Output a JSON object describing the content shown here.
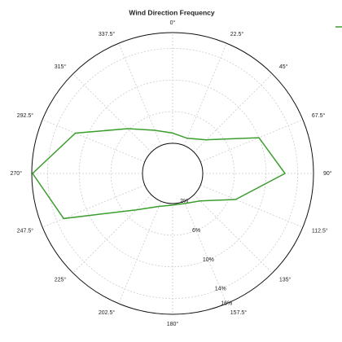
{
  "chart_data": {
    "type": "polar-line",
    "title": "Wind Direction Frequency",
    "x": [
      0,
      22.5,
      45,
      67.5,
      90,
      112.5,
      135,
      157.5,
      180,
      202.5,
      225,
      247.5,
      270,
      292.5,
      315,
      337.5
    ],
    "series": [
      {
        "color": "#3c9e2e",
        "values": [
          3.3,
          3.0,
          4.2,
          10,
          12.4,
          6.8,
          3.1,
          2.3,
          2.2,
          2.7,
          4.7,
          13.1,
          15.9,
          11.5,
          6.2,
          4.1
        ]
      }
    ],
    "xticks": [
      {
        "value": 0,
        "label": "0°"
      },
      {
        "value": 22.5,
        "label": "22.5°"
      },
      {
        "value": 45,
        "label": "45°"
      },
      {
        "value": 67.5,
        "label": "67.5°"
      },
      {
        "value": 90,
        "label": "90°"
      },
      {
        "value": 112.5,
        "label": "112.5°"
      },
      {
        "value": 135,
        "label": "135°"
      },
      {
        "value": 157.5,
        "label": "157.5°"
      },
      {
        "value": 180,
        "label": "180°"
      },
      {
        "value": 202.5,
        "label": "202.5°"
      },
      {
        "value": 225,
        "label": "225°"
      },
      {
        "value": 247.5,
        "label": "247.5°"
      },
      {
        "value": 270,
        "label": "270°"
      },
      {
        "value": 292.5,
        "label": "292.5°"
      },
      {
        "value": 315,
        "label": "315°"
      },
      {
        "value": 337.5,
        "label": "337.5°"
      }
    ],
    "ylim": [
      2,
      16
    ],
    "yticks": [
      {
        "value": 2,
        "label": "2%"
      },
      {
        "value": 6,
        "label": "6%"
      },
      {
        "value": 10,
        "label": "10%"
      },
      {
        "value": 14,
        "label": "14%"
      },
      {
        "value": 16,
        "label": "16%"
      }
    ],
    "grid": true
  }
}
